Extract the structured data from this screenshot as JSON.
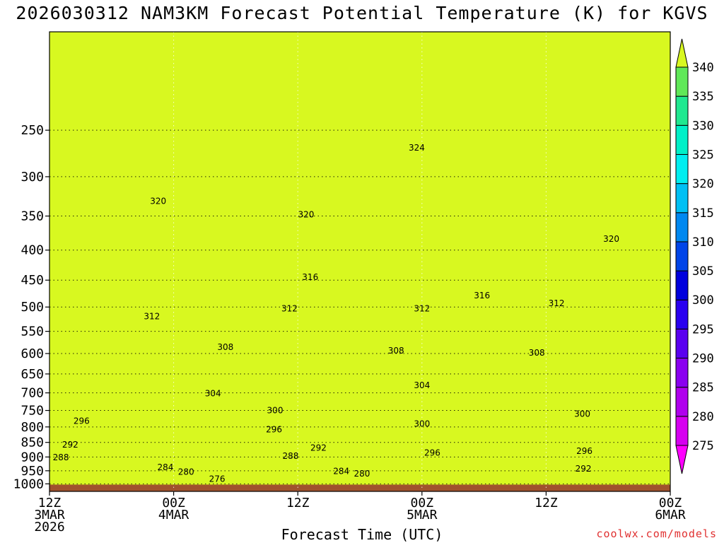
{
  "chart_data": {
    "type": "contour",
    "title": "2026030312 NAM3KM Forecast Potential Temperature (K) for KGVS",
    "xlabel": "Forecast Time (UTC)",
    "ylabel": "",
    "credit": "coolwx.com/models",
    "x_ticks": [
      {
        "hour": 0,
        "label": "12Z",
        "sub1": "3MAR",
        "sub2": "2026"
      },
      {
        "hour": 12,
        "label": "00Z",
        "sub1": "4MAR",
        "sub2": ""
      },
      {
        "hour": 24,
        "label": "12Z",
        "sub1": "",
        "sub2": ""
      },
      {
        "hour": 36,
        "label": "00Z",
        "sub1": "5MAR",
        "sub2": ""
      },
      {
        "hour": 48,
        "label": "12Z",
        "sub1": "",
        "sub2": ""
      },
      {
        "hour": 60,
        "label": "00Z",
        "sub1": "6MAR",
        "sub2": ""
      }
    ],
    "x_range_hours": [
      0,
      60
    ],
    "pressure_range_hpa": [
      1030,
      170
    ],
    "y_ticks": [
      250,
      300,
      350,
      400,
      450,
      500,
      550,
      600,
      650,
      700,
      750,
      800,
      850,
      900,
      950,
      1000
    ],
    "colorbar": {
      "levels": [
        275,
        280,
        285,
        290,
        295,
        300,
        305,
        310,
        315,
        320,
        325,
        330,
        335,
        340
      ],
      "colors": [
        "#ff00ff",
        "#d600f0",
        "#b000ee",
        "#8a00f0",
        "#5a00f0",
        "#2a00f0",
        "#0000dd",
        "#0044e8",
        "#0088f0",
        "#00c0f4",
        "#00eef0",
        "#00f0c8",
        "#20e890",
        "#60e858",
        "#a0f030",
        "#d8f820"
      ]
    },
    "contour_labels": [
      {
        "value": 324,
        "hour": 35.5,
        "p": 268
      },
      {
        "value": 320,
        "hour": 10.5,
        "p": 330
      },
      {
        "value": 320,
        "hour": 24.8,
        "p": 348
      },
      {
        "value": 320,
        "hour": 54.3,
        "p": 383
      },
      {
        "value": 316,
        "hour": 25.2,
        "p": 445
      },
      {
        "value": 316,
        "hour": 41.8,
        "p": 478
      },
      {
        "value": 312,
        "hour": 9.9,
        "p": 519
      },
      {
        "value": 312,
        "hour": 23.2,
        "p": 503
      },
      {
        "value": 312,
        "hour": 36.0,
        "p": 503
      },
      {
        "value": 312,
        "hour": 49.0,
        "p": 493
      },
      {
        "value": 308,
        "hour": 17.0,
        "p": 585
      },
      {
        "value": 308,
        "hour": 33.5,
        "p": 593
      },
      {
        "value": 308,
        "hour": 47.1,
        "p": 598
      },
      {
        "value": 304,
        "hour": 15.8,
        "p": 702
      },
      {
        "value": 304,
        "hour": 36.0,
        "p": 680
      },
      {
        "value": 300,
        "hour": 21.8,
        "p": 750
      },
      {
        "value": 300,
        "hour": 36.0,
        "p": 790
      },
      {
        "value": 300,
        "hour": 51.5,
        "p": 760
      },
      {
        "value": 296,
        "hour": 3.1,
        "p": 782
      },
      {
        "value": 296,
        "hour": 21.7,
        "p": 808
      },
      {
        "value": 296,
        "hour": 37.0,
        "p": 885
      },
      {
        "value": 296,
        "hour": 51.7,
        "p": 880
      },
      {
        "value": 292,
        "hour": 2.0,
        "p": 858
      },
      {
        "value": 292,
        "hour": 26.0,
        "p": 868
      },
      {
        "value": 292,
        "hour": 51.6,
        "p": 943
      },
      {
        "value": 288,
        "hour": 1.1,
        "p": 902
      },
      {
        "value": 288,
        "hour": 23.3,
        "p": 897
      },
      {
        "value": 284,
        "hour": 11.2,
        "p": 937
      },
      {
        "value": 284,
        "hour": 28.2,
        "p": 952
      },
      {
        "value": 280,
        "hour": 13.2,
        "p": 955
      },
      {
        "value": 280,
        "hour": 30.2,
        "p": 961
      },
      {
        "value": 276,
        "hour": 16.2,
        "p": 981
      }
    ],
    "ground": {
      "below_pressure_hpa": 1003,
      "color": "#a0522d"
    }
  }
}
